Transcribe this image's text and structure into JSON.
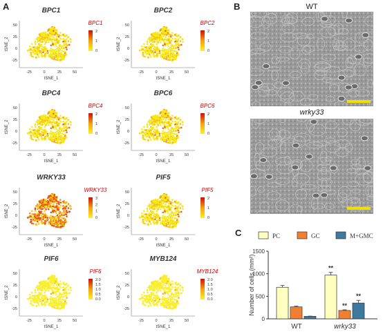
{
  "panels": {
    "a": "A",
    "b": "B",
    "c": "C"
  },
  "tsne": {
    "xlabel": "tSNE_1",
    "ylabel": "tSNE_2",
    "x_ticks": [
      "-25",
      "0",
      "25",
      "50"
    ],
    "y_ticks": [
      "50",
      "25",
      "0",
      "-25"
    ],
    "genes": [
      {
        "name": "BPC1",
        "legend_ticks": [
          "2",
          "1",
          "0"
        ],
        "level": "low"
      },
      {
        "name": "BPC2",
        "legend_ticks": [
          "2",
          "1",
          "0"
        ],
        "level": "low"
      },
      {
        "name": "BPC4",
        "legend_ticks": [
          "2",
          "1",
          "0"
        ],
        "level": "low"
      },
      {
        "name": "BPC6",
        "legend_ticks": [
          "2",
          "1",
          "0"
        ],
        "level": "low"
      },
      {
        "name": "WRKY33",
        "legend_ticks": [
          "3",
          "2",
          "1",
          "0"
        ],
        "level": "high"
      },
      {
        "name": "PIF5",
        "legend_ticks": [
          "2",
          "1",
          "0"
        ],
        "level": "low"
      },
      {
        "name": "PIF6",
        "legend_ticks": [
          "2.0",
          "1.5",
          "1.0",
          "0.5",
          "0.0"
        ],
        "level": "verylow"
      },
      {
        "name": "MYB124",
        "legend_ticks": [
          "2.0",
          "1.5",
          "1.0",
          "0.5",
          "0.0"
        ],
        "level": "verylow"
      }
    ],
    "colors": {
      "low": "#f5e60a",
      "high": "#e8200c"
    }
  },
  "micrographs": [
    {
      "label": "WT",
      "scale_bar_color": "#f0e000"
    },
    {
      "label": "wrky33",
      "scale_bar_color": "#f0e000"
    }
  ],
  "chart_data": {
    "type": "bar",
    "ylabel": "Number of cells (mm²)",
    "categories": [
      "WT",
      "wrky33"
    ],
    "ylim": [
      0,
      1500
    ],
    "yticks": [
      0,
      500,
      1000,
      1500
    ],
    "series": [
      {
        "name": "PC",
        "color": "#ffffc0",
        "values": [
          700,
          970
        ],
        "errors": [
          40,
          60
        ]
      },
      {
        "name": "GC",
        "color": "#f08030",
        "values": [
          265,
          185
        ],
        "errors": [
          15,
          15
        ]
      },
      {
        "name": "M+GMC",
        "color": "#3e7a9e",
        "values": [
          55,
          350
        ],
        "errors": [
          5,
          60
        ]
      }
    ],
    "significance": [
      {
        "series": "PC",
        "category": "wrky33",
        "mark": "**"
      },
      {
        "series": "GC",
        "category": "wrky33",
        "mark": "**"
      },
      {
        "series": "M+GMC",
        "category": "wrky33",
        "mark": "**"
      }
    ]
  }
}
